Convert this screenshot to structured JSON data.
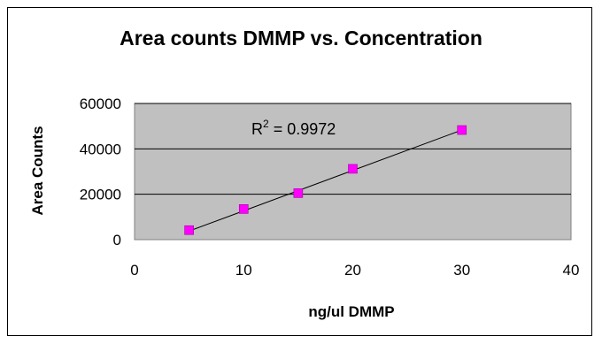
{
  "chart_data": {
    "type": "scatter",
    "title": "Area counts DMMP vs. Concentration",
    "xlabel": "ng/ul DMMP",
    "ylabel": "Area Counts",
    "xlim": [
      0,
      40
    ],
    "ylim": [
      0,
      60000
    ],
    "xticks": [
      0,
      10,
      20,
      30,
      40
    ],
    "yticks": [
      0,
      20000,
      40000,
      60000
    ],
    "grid": "horizontal",
    "plot_background": "#c0c0c0",
    "marker_color": "#ff00ff",
    "trendline": {
      "type": "linear",
      "color": "#000000",
      "from": [
        5,
        3800
      ],
      "to": [
        30,
        48300
      ]
    },
    "points": [
      {
        "x": 5,
        "y": 4200
      },
      {
        "x": 10,
        "y": 13500
      },
      {
        "x": 15,
        "y": 20500
      },
      {
        "x": 20,
        "y": 31200
      },
      {
        "x": 30,
        "y": 48300
      }
    ],
    "annotation": {
      "label": "R",
      "superscript": "2",
      "value": " = 0.9972"
    }
  }
}
